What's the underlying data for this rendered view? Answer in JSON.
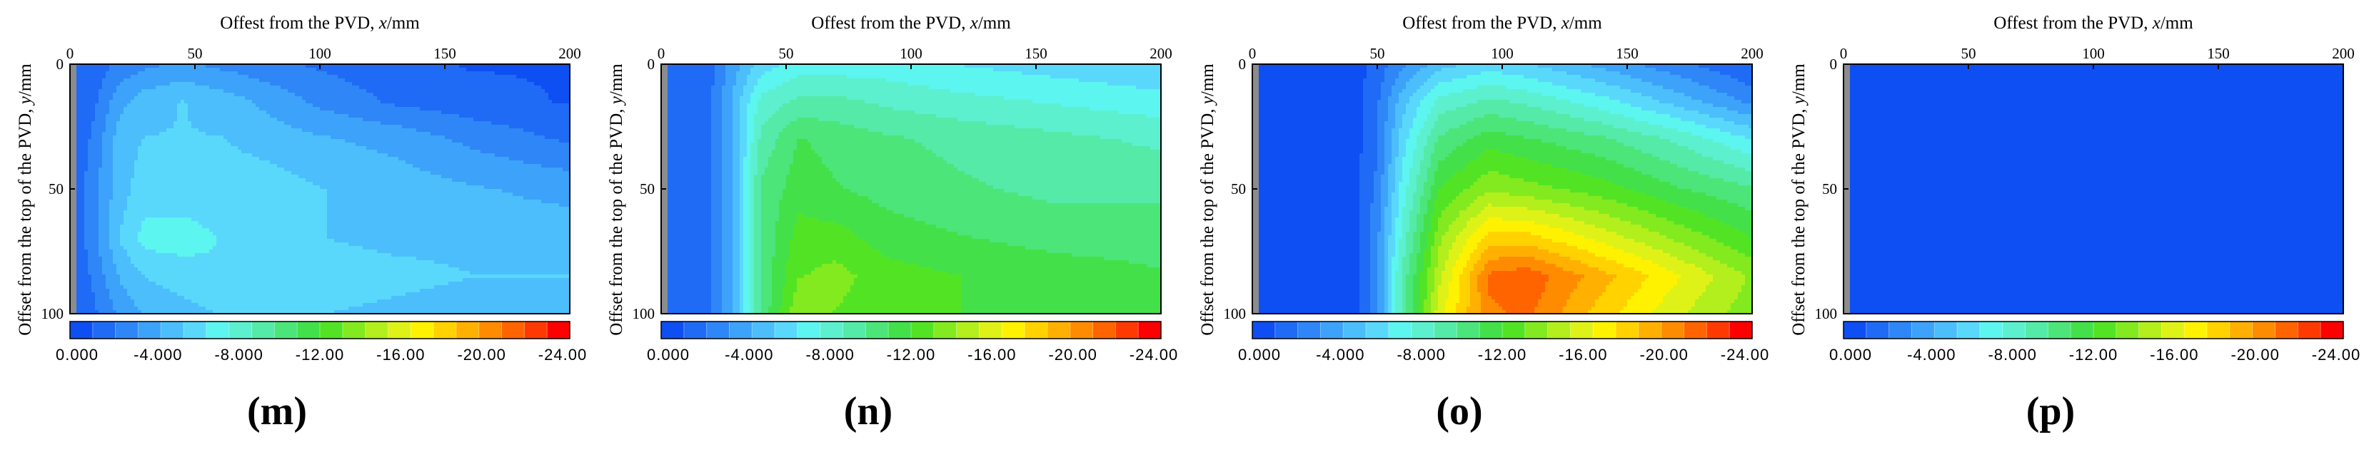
{
  "chart_data": [
    {
      "type": "heatmap",
      "panel_label": "(m)",
      "x_axis_title": "Offest from the PVD, x/mm",
      "y_axis_title": "Offset from the top of the PVD, y/mm",
      "xlim": [
        0,
        200
      ],
      "ylim": [
        0,
        100
      ],
      "xticks": [
        "0",
        "50",
        "100",
        "150",
        "200"
      ],
      "yticks": [
        "0",
        "50",
        "100"
      ],
      "colorbar": {
        "range": [
          0,
          -24
        ],
        "labels": [
          "0.000",
          "-4.000",
          "-8.000",
          "-12.00",
          "-16.00",
          "-20.00",
          "-24.00"
        ],
        "colors": [
          "#0d4ff2",
          "#1f6bf5",
          "#2f86f7",
          "#3da2fa",
          "#4bbefb",
          "#59d8fc",
          "#5cf5ef",
          "#5cf0cf",
          "#55eaa8",
          "#4ce57a",
          "#43e04a",
          "#52e424",
          "#82ea1f",
          "#b2ef1c",
          "#dff217",
          "#fff200",
          "#ffd200",
          "#ffb000",
          "#ff8c00",
          "#ff6400",
          "#ff3a00",
          "#ff0000"
        ]
      },
      "values_grid": {
        "x": [
          0,
          10,
          20,
          30,
          45,
          60,
          80,
          100,
          130,
          160,
          200
        ],
        "y": [
          0,
          15,
          30,
          50,
          70,
          85,
          100
        ],
        "z": [
          [
            -1,
            -1.5,
            -2.5,
            -3,
            -3.5,
            -3,
            -2.5,
            -2,
            -1.5,
            -1,
            -1
          ],
          [
            -1,
            -2,
            -4,
            -5,
            -5.5,
            -5,
            -4,
            -3,
            -2,
            -1.5,
            -1
          ],
          [
            -1,
            -2.5,
            -5,
            -5.5,
            -5.5,
            -5.5,
            -5,
            -4.5,
            -4,
            -3,
            -2
          ],
          [
            -1,
            -3,
            -5,
            -6,
            -6,
            -6,
            -6,
            -5.5,
            -5,
            -4.5,
            -4
          ],
          [
            -1,
            -3,
            -5.5,
            -7,
            -7,
            -6.5,
            -6,
            -5.5,
            -5,
            -5,
            -5
          ],
          [
            -1,
            -2.5,
            -4.5,
            -5.5,
            -6,
            -6.5,
            -6.5,
            -6.5,
            -6,
            -5.5,
            -5.5
          ],
          [
            -1,
            -2,
            -3.5,
            -4.5,
            -5,
            -5.5,
            -5.5,
            -5.5,
            -5,
            -4.5,
            -4.5
          ]
        ]
      }
    },
    {
      "type": "heatmap",
      "panel_label": "(n)",
      "x_axis_title": "Offest from the PVD, x/mm",
      "y_axis_title": "Offset from the top of the PVD, y/mm",
      "xlim": [
        0,
        200
      ],
      "ylim": [
        0,
        100
      ],
      "xticks": [
        "0",
        "50",
        "100",
        "150",
        "200"
      ],
      "yticks": [
        "0",
        "50",
        "100"
      ],
      "colorbar": {
        "range": [
          0,
          -24
        ],
        "labels": [
          "0.000",
          "-4.000",
          "-8.000",
          "-12.00",
          "-16.00",
          "-20.00",
          "-24.00"
        ],
        "colors": [
          "#0d4ff2",
          "#1f6bf5",
          "#2f86f7",
          "#3da2fa",
          "#4bbefb",
          "#59d8fc",
          "#5cf5ef",
          "#5cf0cf",
          "#55eaa8",
          "#4ce57a",
          "#43e04a",
          "#52e424",
          "#82ea1f",
          "#b2ef1c",
          "#dff217",
          "#fff200",
          "#ffd200",
          "#ffb000",
          "#ff8c00",
          "#ff6400",
          "#ff3a00",
          "#ff0000"
        ]
      },
      "values_grid": {
        "x": [
          0,
          10,
          20,
          30,
          40,
          55,
          70,
          90,
          120,
          160,
          200
        ],
        "y": [
          0,
          15,
          30,
          50,
          70,
          85,
          100
        ],
        "z": [
          [
            -1,
            -1.5,
            -2,
            -4,
            -6,
            -7,
            -7,
            -7,
            -6.5,
            -6,
            -5.5
          ],
          [
            -1,
            -1.5,
            -2,
            -5,
            -8,
            -9,
            -9,
            -8.5,
            -8,
            -7.5,
            -7
          ],
          [
            -1,
            -1.5,
            -2,
            -5,
            -9,
            -11,
            -10.5,
            -10,
            -9.5,
            -9,
            -8.5
          ],
          [
            -1,
            -1.5,
            -2,
            -5,
            -10,
            -11.5,
            -11,
            -10.5,
            -10,
            -9.5,
            -9.5
          ],
          [
            -1,
            -1.5,
            -2,
            -5,
            -10,
            -12.5,
            -12.5,
            -11.5,
            -11,
            -10.5,
            -10.5
          ],
          [
            -1,
            -1.5,
            -2,
            -5,
            -10,
            -13,
            -13.5,
            -12.5,
            -12,
            -11.5,
            -11
          ],
          [
            -1,
            -1.5,
            -2,
            -5,
            -10,
            -14,
            -13,
            -12.5,
            -12,
            -11.5,
            -11.5
          ]
        ]
      }
    },
    {
      "type": "heatmap",
      "panel_label": "(o)",
      "x_axis_title": "Offest from the PVD, x/mm",
      "y_axis_title": "Offset from the top of the PVD, y/mm",
      "xlim": [
        0,
        200
      ],
      "ylim": [
        0,
        100
      ],
      "xticks": [
        "0",
        "50",
        "100",
        "150",
        "200"
      ],
      "yticks": [
        "0",
        "50",
        "100"
      ],
      "colorbar": {
        "range": [
          0,
          -24
        ],
        "labels": [
          "0.000",
          "-4.000",
          "-8.000",
          "-12.00",
          "-16.00",
          "-20.00",
          "-24.00"
        ],
        "colors": [
          "#0d4ff2",
          "#1f6bf5",
          "#2f86f7",
          "#3da2fa",
          "#4bbefb",
          "#59d8fc",
          "#5cf5ef",
          "#5cf0cf",
          "#55eaa8",
          "#4ce57a",
          "#43e04a",
          "#52e424",
          "#82ea1f",
          "#b2ef1c",
          "#dff217",
          "#fff200",
          "#ffd200",
          "#ffb000",
          "#ff8c00",
          "#ff6400",
          "#ff3a00",
          "#ff0000"
        ]
      },
      "values_grid": {
        "x": [
          0,
          20,
          40,
          50,
          60,
          75,
          95,
          110,
          140,
          170,
          200
        ],
        "y": [
          0,
          15,
          30,
          50,
          70,
          85,
          100
        ],
        "z": [
          [
            0,
            0,
            -0.5,
            -1.5,
            -3,
            -5,
            -6,
            -5.5,
            -4,
            -2.5,
            -1
          ],
          [
            0,
            0,
            -0.5,
            -2,
            -5,
            -8,
            -9,
            -8.5,
            -7,
            -5,
            -3
          ],
          [
            0,
            0,
            -0.5,
            -2,
            -6,
            -10,
            -11.5,
            -11,
            -10,
            -8.5,
            -6.5
          ],
          [
            0,
            0,
            -0.5,
            -2.5,
            -7,
            -12,
            -14,
            -13.5,
            -12.5,
            -11,
            -10
          ],
          [
            0,
            0,
            -0.5,
            -3,
            -8,
            -14,
            -18,
            -18,
            -16,
            -14,
            -12
          ],
          [
            0,
            0,
            -0.5,
            -3,
            -9,
            -15,
            -21,
            -21.5,
            -19,
            -16.5,
            -14
          ],
          [
            0,
            0,
            -0.5,
            -3,
            -9,
            -16,
            -20.5,
            -21,
            -18,
            -15.5,
            -13.5
          ]
        ]
      }
    },
    {
      "type": "heatmap",
      "panel_label": "(p)",
      "x_axis_title": "Offest from the PVD, x/mm",
      "y_axis_title": "Offset from the top of the PVD, y/mm",
      "xlim": [
        0,
        200
      ],
      "ylim": [
        0,
        100
      ],
      "xticks": [
        "0",
        "50",
        "100",
        "150",
        "200"
      ],
      "yticks": [
        "0",
        "50",
        "100"
      ],
      "colorbar": {
        "range": [
          0,
          -24
        ],
        "labels": [
          "0.000",
          "-4.000",
          "-8.000",
          "-12.00",
          "-16.00",
          "-20.00",
          "-24.00"
        ],
        "colors": [
          "#0d4ff2",
          "#1f6bf5",
          "#2f86f7",
          "#3da2fa",
          "#4bbefb",
          "#59d8fc",
          "#5cf5ef",
          "#5cf0cf",
          "#55eaa8",
          "#4ce57a",
          "#43e04a",
          "#52e424",
          "#82ea1f",
          "#b2ef1c",
          "#dff217",
          "#fff200",
          "#ffd200",
          "#ffb000",
          "#ff8c00",
          "#ff6400",
          "#ff3a00",
          "#ff0000"
        ]
      },
      "values_grid": {
        "x": [
          0,
          50,
          100,
          110,
          120,
          150,
          200
        ],
        "y": [
          0,
          50,
          55,
          70,
          100
        ],
        "z": [
          [
            0,
            0,
            0,
            0,
            0,
            0,
            0
          ],
          [
            0,
            0,
            0,
            0,
            0,
            0,
            0
          ],
          [
            0,
            0,
            0,
            0,
            -1,
            -1,
            -1
          ],
          [
            0,
            0,
            0,
            -1,
            -1,
            -1,
            -1
          ],
          [
            0,
            0,
            0,
            -1,
            -1,
            -1,
            -1
          ]
        ]
      }
    }
  ]
}
